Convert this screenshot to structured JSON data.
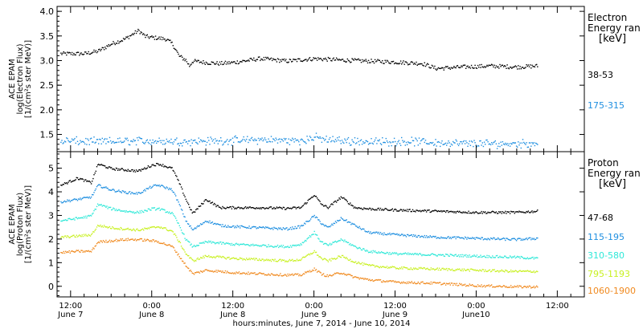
{
  "xlabel": "hours:minutes,  June  7, 2014 - June 10, 2014",
  "time_ticks": [
    {
      "t": 0,
      "time": "12:00",
      "day": "June 7"
    },
    {
      "t": 12,
      "time": "0:00",
      "day": "June 8"
    },
    {
      "t": 24,
      "time": "12:00",
      "day": "June 8"
    },
    {
      "t": 36,
      "time": "0:00",
      "day": "June 9"
    },
    {
      "t": 48,
      "time": "12:00",
      "day": "June 9"
    },
    {
      "t": 60,
      "time": "0:00",
      "day": "June10"
    },
    {
      "t": 72,
      "time": "12:00",
      "day": ""
    }
  ],
  "chart_data": [
    {
      "type": "scatter",
      "panel": "electron",
      "ylabel": [
        "ACE EPAM",
        "log(Electron Flux)",
        "[1/(cm²s ster MeV)]"
      ],
      "ylim": [
        1.15,
        4.1
      ],
      "yticks": [
        1.5,
        2.0,
        2.5,
        3.0,
        3.5,
        4.0
      ],
      "ytick_labels": [
        "1.5",
        "2.0",
        "2.5",
        "3.0",
        "3.5",
        "4.0"
      ],
      "xlim": [
        -2,
        76
      ],
      "legend_title": [
        "Electron",
        "Energy ran",
        "[keV]"
      ],
      "series": [
        {
          "name": "38-53",
          "color": "#000000",
          "x": [
            -1.5,
            0,
            2,
            4,
            6,
            8,
            10,
            11,
            12,
            14,
            15,
            16,
            17,
            17.5,
            18,
            20,
            22,
            24,
            28,
            32,
            36,
            40,
            44,
            48,
            52,
            54,
            58,
            62,
            66,
            69
          ],
          "y": [
            3.15,
            3.15,
            3.15,
            3.2,
            3.35,
            3.45,
            3.62,
            3.5,
            3.48,
            3.45,
            3.35,
            3.1,
            3.02,
            2.9,
            3.0,
            2.97,
            2.95,
            2.97,
            3.05,
            3.0,
            3.05,
            3.02,
            3.0,
            2.98,
            2.95,
            2.85,
            2.88,
            2.9,
            2.88,
            2.9
          ]
        },
        {
          "name": "175-315",
          "color": "#1f8fe0",
          "x": [
            -1.5,
            4,
            10,
            16,
            22,
            28,
            34,
            36,
            38,
            44,
            50,
            56,
            62,
            69
          ],
          "y": [
            1.38,
            1.36,
            1.38,
            1.37,
            1.38,
            1.4,
            1.38,
            1.45,
            1.4,
            1.36,
            1.37,
            1.33,
            1.32,
            1.33
          ]
        }
      ]
    },
    {
      "type": "scatter",
      "panel": "proton",
      "ylabel": [
        "ACE EPAM",
        "log(Proton Flux)",
        "[1/(cm²s ster MeV)]"
      ],
      "ylim": [
        -0.45,
        5.7
      ],
      "yticks": [
        0,
        1,
        2,
        3,
        4,
        5
      ],
      "ytick_labels": [
        "0",
        "1",
        "2",
        "3",
        "4",
        "5"
      ],
      "xlim": [
        -2,
        76
      ],
      "legend_title": [
        "Proton",
        "Energy ran",
        "[keV]"
      ],
      "series": [
        {
          "name": "47-68",
          "color": "#000000",
          "x": [
            -1.5,
            1,
            3,
            4,
            6,
            8,
            10,
            12,
            13,
            15,
            16,
            17,
            18,
            20,
            22,
            24,
            28,
            32,
            34,
            36,
            37,
            38,
            40,
            42,
            44,
            48,
            54,
            60,
            66,
            69
          ],
          "y": [
            4.3,
            4.6,
            4.4,
            5.2,
            5.0,
            4.95,
            4.9,
            5.15,
            5.2,
            5.0,
            4.4,
            3.7,
            3.1,
            3.7,
            3.35,
            3.35,
            3.35,
            3.32,
            3.35,
            3.9,
            3.5,
            3.35,
            3.8,
            3.35,
            3.3,
            3.25,
            3.2,
            3.15,
            3.15,
            3.2
          ]
        },
        {
          "name": "115-195",
          "color": "#1f8fe0",
          "x": [
            -1.5,
            1,
            3,
            4,
            6,
            8,
            10,
            12,
            13,
            15,
            16,
            17,
            18,
            20,
            22,
            24,
            28,
            32,
            34,
            36,
            37,
            38,
            40,
            42,
            44,
            48,
            54,
            60,
            66,
            69
          ],
          "y": [
            3.6,
            3.7,
            3.8,
            4.3,
            4.1,
            4.0,
            3.95,
            4.25,
            4.3,
            4.1,
            3.5,
            2.8,
            2.4,
            2.8,
            2.6,
            2.55,
            2.5,
            2.45,
            2.55,
            3.0,
            2.7,
            2.5,
            2.9,
            2.6,
            2.3,
            2.2,
            2.1,
            2.05,
            2.0,
            2.05
          ]
        },
        {
          "name": "310-580",
          "color": "#2fe8d8",
          "x": [
            -1.5,
            1,
            3,
            4,
            6,
            8,
            10,
            12,
            13,
            15,
            16,
            17,
            18,
            20,
            22,
            24,
            28,
            32,
            34,
            36,
            37,
            38,
            40,
            42,
            44,
            48,
            54,
            60,
            66,
            69
          ],
          "y": [
            2.8,
            2.9,
            3.0,
            3.5,
            3.3,
            3.2,
            3.15,
            3.3,
            3.3,
            3.1,
            2.6,
            2.0,
            1.7,
            1.9,
            1.85,
            1.8,
            1.75,
            1.7,
            1.8,
            2.3,
            1.9,
            1.75,
            2.0,
            1.7,
            1.5,
            1.4,
            1.35,
            1.3,
            1.25,
            1.2
          ]
        },
        {
          "name": "795-1193",
          "color": "#c8f020",
          "x": [
            -1.5,
            1,
            3,
            4,
            6,
            8,
            10,
            12,
            13,
            15,
            16,
            17,
            18,
            20,
            22,
            24,
            28,
            32,
            34,
            36,
            37,
            38,
            40,
            42,
            44,
            48,
            54,
            60,
            66,
            69
          ],
          "y": [
            2.1,
            2.15,
            2.2,
            2.6,
            2.5,
            2.45,
            2.4,
            2.5,
            2.55,
            2.35,
            1.9,
            1.4,
            1.1,
            1.3,
            1.25,
            1.2,
            1.15,
            1.1,
            1.15,
            1.5,
            1.2,
            1.1,
            1.3,
            1.05,
            0.9,
            0.8,
            0.75,
            0.7,
            0.65,
            0.65
          ]
        },
        {
          "name": "1060-1900",
          "color": "#f08a20",
          "x": [
            -1.5,
            1,
            3,
            4,
            6,
            8,
            10,
            12,
            13,
            15,
            16,
            17,
            18,
            20,
            22,
            24,
            28,
            32,
            34,
            36,
            37,
            38,
            40,
            42,
            44,
            48,
            54,
            60,
            66,
            69
          ],
          "y": [
            1.45,
            1.5,
            1.5,
            1.9,
            1.95,
            2.0,
            2.0,
            1.95,
            1.9,
            1.7,
            1.3,
            0.9,
            0.55,
            0.7,
            0.65,
            0.6,
            0.55,
            0.5,
            0.5,
            0.75,
            0.55,
            0.45,
            0.6,
            0.4,
            0.3,
            0.2,
            0.15,
            0.05,
            0.0,
            0.0
          ]
        }
      ]
    }
  ]
}
